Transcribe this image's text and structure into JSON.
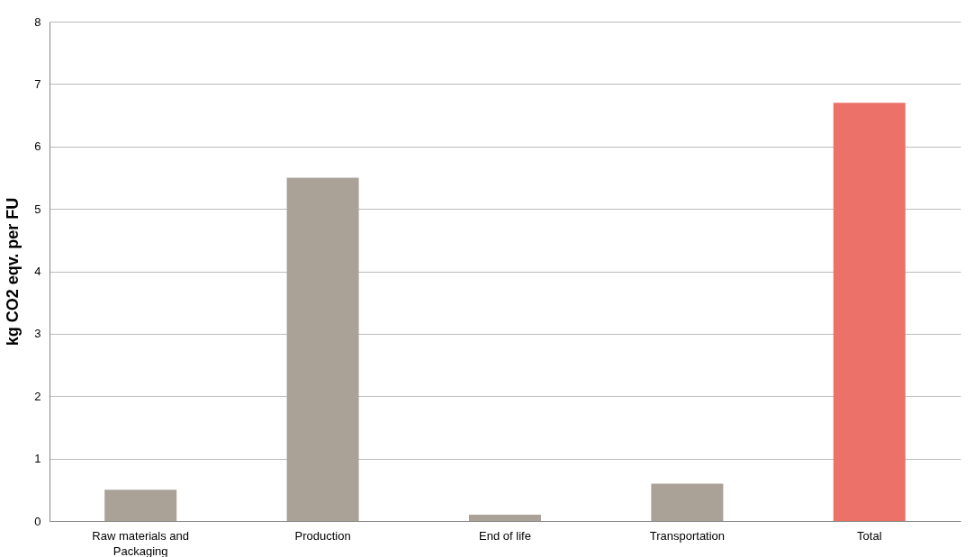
{
  "chart_data": {
    "type": "bar",
    "ylabel": "kg CO2 eqv. per FU",
    "categories": [
      "Raw materials and Packaging",
      "Production",
      "End of life",
      "Transportation",
      "Total"
    ],
    "values": [
      0.5,
      5.5,
      0.1,
      0.6,
      6.7
    ],
    "colors": [
      "#aaa197",
      "#aaa197",
      "#aaa197",
      "#aaa197",
      "#ec7168"
    ],
    "ylim": [
      0,
      8
    ],
    "yticks": [
      0,
      1,
      2,
      3,
      4,
      5,
      6,
      7,
      8
    ],
    "grid": "y"
  }
}
